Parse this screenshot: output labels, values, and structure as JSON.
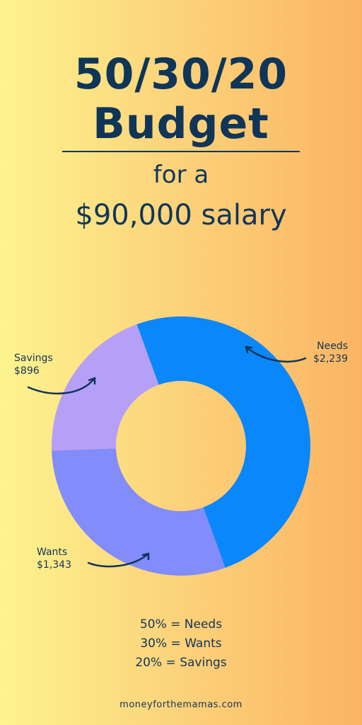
{
  "header": {
    "title_line1": "50/30/20",
    "title_line2": "Budget",
    "subtitle_line1": "for a",
    "subtitle_line2": "$90,000 salary"
  },
  "chart_data": {
    "type": "pie",
    "donut": true,
    "slices": [
      {
        "name": "Needs",
        "value": 2239,
        "label": "$2,239",
        "color": "#0a87fb"
      },
      {
        "name": "Wants",
        "value": 1343,
        "label": "$1,343",
        "color": "#828cfa"
      },
      {
        "name": "Savings",
        "value": 896,
        "label": "$896",
        "color": "#b6a0f7"
      }
    ],
    "start_angle_deg": -20
  },
  "legend": {
    "line1": "50% = Needs",
    "line2": "30% = Wants",
    "line3": "20% = Savings"
  },
  "footer": {
    "site": "moneyforthemamas.com"
  },
  "colors": {
    "text": "#10355a",
    "bg_left": "#fdf48e",
    "bg_right": "#fbb463"
  }
}
